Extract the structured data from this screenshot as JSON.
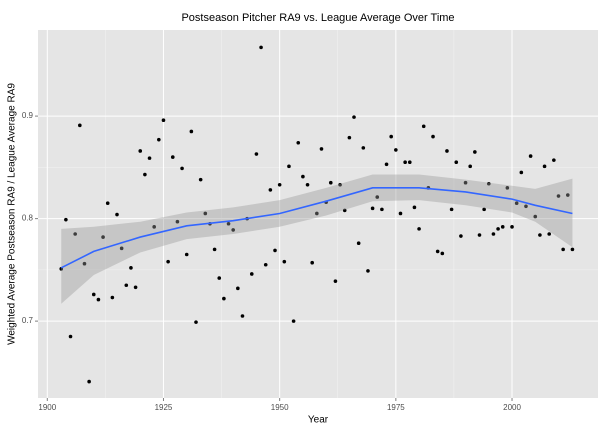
{
  "chart_data": {
    "type": "scatter",
    "title": "Postseason Pitcher RA9 vs. League Average Over Time",
    "x_label": "Year",
    "y_label": "Weighted Average Postseason RA9 / League Average RA9",
    "xlim": [
      1898,
      2018.5
    ],
    "ylim": [
      0.625,
      0.984
    ],
    "xticks": [
      1900,
      1925,
      1950,
      1975,
      2000
    ],
    "yticks": [
      0.7,
      0.8,
      0.9
    ],
    "grid": true,
    "series": [
      {
        "color": "#000000",
        "x": [
          1903,
          1904,
          1905,
          1906,
          1907,
          1908,
          1909,
          1910,
          1911,
          1912,
          1913,
          1914,
          1915,
          1916,
          1917,
          1918,
          1919,
          1920,
          1921,
          1922,
          1923,
          1924,
          1925,
          1926,
          1927,
          1928,
          1929,
          1930,
          1931,
          1932,
          1933,
          1934,
          1935,
          1936,
          1937,
          1938,
          1939,
          1940,
          1941,
          1942,
          1943,
          1944,
          1945,
          1946,
          1947,
          1948,
          1949,
          1950,
          1951,
          1952,
          1953,
          1954,
          1955,
          1956,
          1957,
          1958,
          1959,
          1960,
          1961,
          1962,
          1963,
          1964,
          1965,
          1966,
          1967,
          1968,
          1969,
          1970,
          1971,
          1972,
          1973,
          1974,
          1975,
          1976,
          1977,
          1978,
          1979,
          1980,
          1981,
          1982,
          1983,
          1984,
          1985,
          1986,
          1987,
          1988,
          1989,
          1990,
          1991,
          1992,
          1993,
          1994,
          1995,
          1996,
          1997,
          1998,
          1999,
          2000,
          2001,
          2002,
          2003,
          2004,
          2005,
          2006,
          2007,
          2008,
          2009,
          2010,
          2011,
          2012,
          2013
        ],
        "values": [
          0.751,
          0.799,
          0.685,
          0.785,
          0.891,
          0.756,
          0.641,
          0.726,
          0.721,
          0.782,
          0.815,
          0.723,
          0.804,
          0.771,
          0.735,
          0.752,
          0.733,
          0.866,
          0.843,
          0.859,
          0.792,
          0.877,
          0.896,
          0.758,
          0.86,
          0.797,
          0.849,
          0.765,
          0.885,
          0.699,
          0.838,
          0.805,
          0.795,
          0.77,
          0.742,
          0.722,
          0.795,
          0.789,
          0.732,
          0.705,
          0.8,
          0.746,
          0.863,
          0.967,
          0.755,
          0.828,
          0.769,
          0.833,
          0.758,
          0.851,
          0.7,
          0.874,
          0.841,
          0.833,
          0.757,
          0.805,
          0.868,
          0.816,
          0.835,
          0.739,
          0.833,
          0.808,
          0.879,
          0.899,
          0.776,
          0.869,
          0.749,
          0.81,
          0.821,
          0.809,
          0.853,
          0.88,
          0.867,
          0.805,
          0.855,
          0.855,
          0.811,
          0.79,
          0.89,
          0.83,
          0.88,
          0.768,
          0.766,
          0.866,
          0.809,
          0.855,
          0.783,
          0.835,
          0.851,
          0.865,
          0.784,
          0.809,
          0.834,
          0.785,
          0.79,
          0.792,
          0.83,
          0.792,
          0.815,
          0.845,
          0.812,
          0.861,
          0.802,
          0.784,
          0.851,
          0.785,
          0.857,
          0.822,
          0.77,
          0.823,
          0.77
        ]
      }
    ],
    "smooth": {
      "color": "#3366FF",
      "band_color": "#999999",
      "x": [
        1903,
        1910,
        1920,
        1930,
        1940,
        1950,
        1960,
        1970,
        1980,
        1990,
        2000,
        2005,
        2013
      ],
      "values": [
        0.752,
        0.768,
        0.782,
        0.793,
        0.798,
        0.805,
        0.817,
        0.83,
        0.83,
        0.826,
        0.819,
        0.813,
        0.805
      ],
      "lower": [
        0.717,
        0.745,
        0.767,
        0.78,
        0.785,
        0.792,
        0.803,
        0.817,
        0.818,
        0.813,
        0.806,
        0.797,
        0.772
      ],
      "upper": [
        0.79,
        0.792,
        0.797,
        0.806,
        0.811,
        0.818,
        0.83,
        0.843,
        0.843,
        0.838,
        0.832,
        0.829,
        0.839
      ]
    }
  }
}
